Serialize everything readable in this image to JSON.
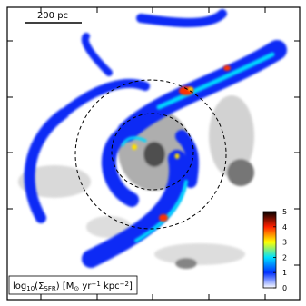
{
  "chart_data": {
    "type": "heatmap",
    "scale_bar": {
      "label": "200 pc"
    },
    "colorbar": {
      "label_parts": [
        {
          "text": "log",
          "style": "normal"
        },
        {
          "text": "10",
          "style": "sub"
        },
        {
          "text": "(Σ",
          "style": "normal"
        },
        {
          "text": "SFR",
          "style": "sub"
        },
        {
          "text": ") [M",
          "style": "normal"
        },
        {
          "text": "⊙",
          "style": "sub"
        },
        {
          "text": " yr",
          "style": "normal"
        },
        {
          "text": "−1",
          "style": "sup"
        },
        {
          "text": " kpc",
          "style": "normal"
        },
        {
          "text": "−2",
          "style": "sup"
        },
        {
          "text": "]",
          "style": "normal"
        }
      ],
      "lim": [
        0,
        5
      ],
      "ticks": [
        0,
        1,
        2,
        3,
        4,
        5
      ],
      "colors": [
        "#ffffff",
        "#0030ff",
        "#00e0ff",
        "#ffff00",
        "#ff2000",
        "#000000"
      ]
    }
  }
}
